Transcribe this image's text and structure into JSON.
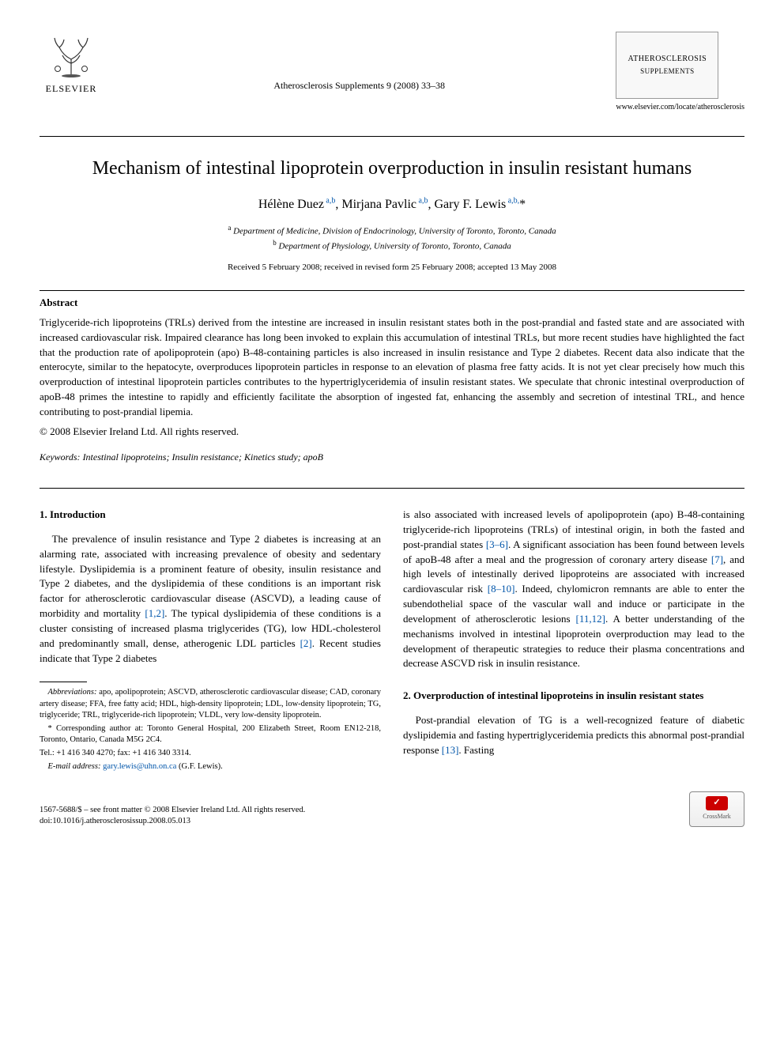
{
  "header": {
    "publisher_name": "ELSEVIER",
    "citation": "Atherosclerosis Supplements 9 (2008) 33–38",
    "journal_title": "ATHEROSCLEROSIS",
    "journal_subtitle": "SUPPLEMENTS",
    "journal_url": "www.elsevier.com/locate/atherosclerosis"
  },
  "article": {
    "title": "Mechanism of intestinal lipoprotein overproduction in insulin resistant humans",
    "authors_html": "Hélène Duez<sup> a,b</sup>, Mirjana Pavlic<sup> a,b</sup>, Gary F. Lewis<sup> a,b,</sup>*",
    "affiliations": [
      {
        "sup": "a",
        "text": "Department of Medicine, Division of Endocrinology, University of Toronto, Toronto, Canada"
      },
      {
        "sup": "b",
        "text": "Department of Physiology, University of Toronto, Toronto, Canada"
      }
    ],
    "dates": "Received 5 February 2008; received in revised form 25 February 2008; accepted 13 May 2008"
  },
  "abstract": {
    "label": "Abstract",
    "text": "Triglyceride-rich lipoproteins (TRLs) derived from the intestine are increased in insulin resistant states both in the post-prandial and fasted state and are associated with increased cardiovascular risk. Impaired clearance has long been invoked to explain this accumulation of intestinal TRLs, but more recent studies have highlighted the fact that the production rate of apolipoprotein (apo) B-48-containing particles is also increased in insulin resistance and Type 2 diabetes. Recent data also indicate that the enterocyte, similar to the hepatocyte, overproduces lipoprotein particles in response to an elevation of plasma free fatty acids. It is not yet clear precisely how much this overproduction of intestinal lipoprotein particles contributes to the hypertriglyceridemia of insulin resistant states. We speculate that chronic intestinal overproduction of apoB-48 primes the intestine to rapidly and efficiently facilitate the absorption of ingested fat, enhancing the assembly and secretion of intestinal TRL, and hence contributing to post-prandial lipemia.",
    "copyright": "© 2008 Elsevier Ireland Ltd. All rights reserved."
  },
  "keywords": {
    "label": "Keywords:",
    "text": "Intestinal lipoproteins; Insulin resistance; Kinetics study; apoB"
  },
  "sections": {
    "s1": {
      "heading": "1.  Introduction",
      "p1a": "The prevalence of insulin resistance and Type 2 diabetes is increasing at an alarming rate, associated with increasing prevalence of obesity and sedentary lifestyle. Dyslipidemia is a prominent feature of obesity, insulin resistance and Type 2 diabetes, and the dyslipidemia of these conditions is an important risk factor for atherosclerotic cardiovascular disease (ASCVD), a leading cause of morbidity and mortality ",
      "c1": "[1,2]",
      "p1b": ". The typical dyslipidemia of these conditions is a cluster consisting of increased plasma triglycerides (TG), low HDL-cholesterol and predominantly small, dense, atherogenic LDL particles ",
      "c2": "[2]",
      "p1c": ". Recent studies indicate that Type 2 diabetes",
      "p2a": "is also associated with increased levels of apolipoprotein (apo) B-48-containing triglyceride-rich lipoproteins (TRLs) of intestinal origin, in both the fasted and post-prandial states ",
      "c3": "[3–6]",
      "p2b": ". A significant association has been found between levels of apoB-48 after a meal and the progression of coronary artery disease ",
      "c4": "[7]",
      "p2c": ", and high levels of intestinally derived lipoproteins are associated with increased cardiovascular risk ",
      "c5": "[8–10]",
      "p2d": ". Indeed, chylomicron remnants are able to enter the subendothelial space of the vascular wall and induce or participate in the development of atherosclerotic lesions ",
      "c6": "[11,12]",
      "p2e": ". A better understanding of the mechanisms involved in intestinal lipoprotein overproduction may lead to the development of therapeutic strategies to reduce their plasma concentrations and decrease ASCVD risk in insulin resistance."
    },
    "s2": {
      "heading": "2.  Overproduction of intestinal lipoproteins in insulin resistant states",
      "p1a": "Post-prandial elevation of TG is a well-recognized feature of diabetic dyslipidemia and fasting hypertriglyceridemia predicts this abnormal post-prandial response ",
      "c1": "[13]",
      "p1b": ". Fasting"
    }
  },
  "footnotes": {
    "abbr_label": "Abbreviations:",
    "abbr_text": "apo, apolipoprotein; ASCVD, atherosclerotic cardiovascular disease; CAD, coronary artery disease; FFA, free fatty acid; HDL, high-density lipoprotein; LDL, low-density lipoprotein; TG, triglyceride; TRL, triglyceride-rich lipoprotein; VLDL, very low-density lipoprotein.",
    "corr": "* Corresponding author at: Toronto General Hospital, 200 Elizabeth Street, Room EN12-218, Toronto, Ontario, Canada M5G 2C4.",
    "tel": "Tel.: +1 416 340 4270; fax: +1 416 340 3314.",
    "email_label": "E-mail address:",
    "email": "gary.lewis@uhn.on.ca",
    "email_suffix": "(G.F. Lewis)."
  },
  "bottom": {
    "issn": "1567-5688/$ – see front matter © 2008 Elsevier Ireland Ltd. All rights reserved.",
    "doi": "doi:10.1016/j.atherosclerosissup.2008.05.013",
    "crossmark": "CrossMark"
  },
  "colors": {
    "link": "#0055aa",
    "text": "#000000",
    "bg": "#ffffff"
  }
}
